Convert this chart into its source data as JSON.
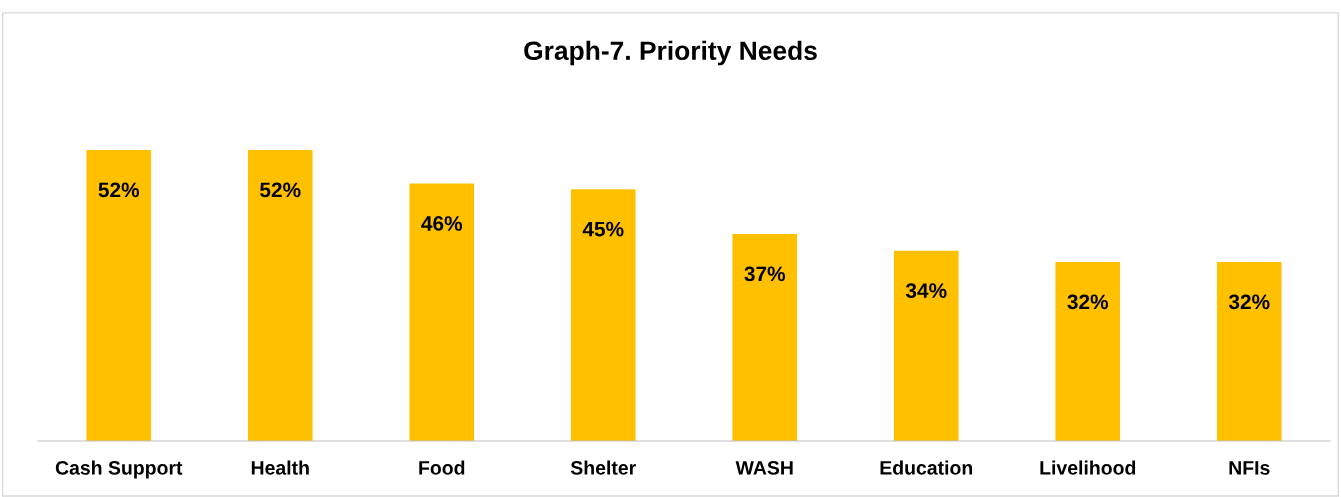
{
  "chart_data": {
    "type": "bar",
    "title": "Graph-7. Priority Needs",
    "categories": [
      "Cash Support",
      "Health",
      "Food",
      "Shelter",
      "WASH",
      "Education",
      "Livelihood",
      "NFIs"
    ],
    "values": [
      52,
      52,
      46,
      45,
      37,
      34,
      32,
      32
    ],
    "value_labels": [
      "52%",
      "52%",
      "46%",
      "45%",
      "37%",
      "34%",
      "32%",
      "32%"
    ],
    "color": "#ffc000",
    "grid": false,
    "legend": false
  }
}
